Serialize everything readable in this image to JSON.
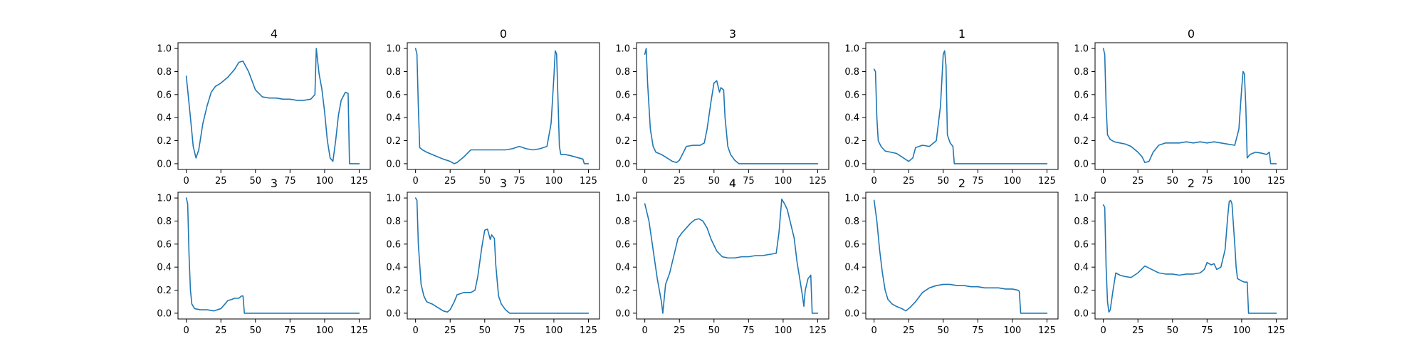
{
  "colors": {
    "series": "#1f77b4",
    "axes": "#000000",
    "background": "#ffffff"
  },
  "chart_data": [
    {
      "type": "line",
      "title": "4",
      "xlim": [
        -6,
        133
      ],
      "ylim": [
        -0.05,
        1.05
      ],
      "xticks": [
        0,
        25,
        50,
        75,
        100,
        125
      ],
      "yticks": [
        0.0,
        0.2,
        0.4,
        0.6,
        0.8,
        1.0
      ],
      "grid": false,
      "x": [
        0,
        3,
        5,
        7,
        9,
        12,
        15,
        18,
        21,
        25,
        30,
        35,
        38,
        41,
        45,
        50,
        55,
        60,
        65,
        70,
        75,
        80,
        85,
        90,
        93,
        94,
        96,
        98,
        100,
        102,
        104,
        106,
        108,
        110,
        112,
        115,
        117,
        118,
        120,
        125
      ],
      "values": [
        0.76,
        0.4,
        0.15,
        0.05,
        0.12,
        0.35,
        0.5,
        0.62,
        0.67,
        0.7,
        0.75,
        0.82,
        0.88,
        0.89,
        0.8,
        0.64,
        0.58,
        0.57,
        0.57,
        0.56,
        0.56,
        0.55,
        0.55,
        0.56,
        0.6,
        1.0,
        0.78,
        0.65,
        0.45,
        0.2,
        0.05,
        0.02,
        0.2,
        0.42,
        0.55,
        0.62,
        0.61,
        0.0,
        0.0,
        0.0
      ]
    },
    {
      "type": "line",
      "title": "0",
      "xlim": [
        -6,
        133
      ],
      "ylim": [
        -0.05,
        1.05
      ],
      "xticks": [
        0,
        25,
        50,
        75,
        100,
        125
      ],
      "yticks": [
        0.0,
        0.2,
        0.4,
        0.6,
        0.8,
        1.0
      ],
      "grid": false,
      "x": [
        0,
        1,
        2,
        3,
        5,
        8,
        12,
        16,
        20,
        25,
        28,
        30,
        35,
        40,
        45,
        50,
        55,
        60,
        65,
        70,
        75,
        80,
        85,
        90,
        95,
        98,
        100,
        101,
        102,
        103,
        104,
        105,
        108,
        112,
        118,
        121,
        122,
        125
      ],
      "values": [
        1.0,
        0.95,
        0.5,
        0.14,
        0.12,
        0.1,
        0.08,
        0.06,
        0.04,
        0.02,
        0.0,
        0.01,
        0.06,
        0.12,
        0.12,
        0.12,
        0.12,
        0.12,
        0.12,
        0.13,
        0.15,
        0.13,
        0.12,
        0.13,
        0.15,
        0.35,
        0.75,
        0.98,
        0.95,
        0.55,
        0.15,
        0.08,
        0.08,
        0.07,
        0.05,
        0.04,
        0.0,
        0.0
      ]
    },
    {
      "type": "line",
      "title": "3",
      "xlim": [
        -6,
        133
      ],
      "ylim": [
        -0.05,
        1.05
      ],
      "xticks": [
        0,
        25,
        50,
        75,
        100,
        125
      ],
      "yticks": [
        0.0,
        0.2,
        0.4,
        0.6,
        0.8,
        1.0
      ],
      "grid": false,
      "x": [
        0,
        1,
        2,
        4,
        6,
        8,
        12,
        16,
        20,
        23,
        25,
        28,
        30,
        35,
        40,
        43,
        45,
        48,
        50,
        52,
        54,
        55,
        57,
        58,
        60,
        62,
        65,
        68,
        70,
        75,
        80,
        90,
        100,
        110,
        120,
        125
      ],
      "values": [
        0.95,
        1.0,
        0.7,
        0.3,
        0.15,
        0.1,
        0.08,
        0.05,
        0.02,
        0.01,
        0.03,
        0.1,
        0.15,
        0.16,
        0.16,
        0.18,
        0.3,
        0.55,
        0.7,
        0.72,
        0.62,
        0.66,
        0.64,
        0.4,
        0.15,
        0.08,
        0.03,
        0.0,
        0.0,
        0.0,
        0.0,
        0.0,
        0.0,
        0.0,
        0.0,
        0.0
      ]
    },
    {
      "type": "line",
      "title": "1",
      "xlim": [
        -6,
        133
      ],
      "ylim": [
        -0.05,
        1.05
      ],
      "xticks": [
        0,
        25,
        50,
        75,
        100,
        125
      ],
      "yticks": [
        0.0,
        0.2,
        0.4,
        0.6,
        0.8,
        1.0
      ],
      "grid": false,
      "x": [
        0,
        1,
        2,
        3,
        5,
        8,
        12,
        16,
        20,
        25,
        28,
        30,
        35,
        40,
        45,
        48,
        50,
        51,
        52,
        53,
        55,
        57,
        58,
        60,
        65,
        70,
        80,
        90,
        100,
        110,
        120,
        125
      ],
      "values": [
        0.82,
        0.8,
        0.4,
        0.2,
        0.15,
        0.11,
        0.1,
        0.09,
        0.06,
        0.02,
        0.05,
        0.14,
        0.16,
        0.15,
        0.2,
        0.5,
        0.95,
        0.98,
        0.85,
        0.25,
        0.18,
        0.15,
        0.0,
        0.0,
        0.0,
        0.0,
        0.0,
        0.0,
        0.0,
        0.0,
        0.0,
        0.0
      ]
    },
    {
      "type": "line",
      "title": "0",
      "xlim": [
        -6,
        133
      ],
      "ylim": [
        -0.05,
        1.05
      ],
      "xticks": [
        0,
        25,
        50,
        75,
        100,
        125
      ],
      "yticks": [
        0.0,
        0.2,
        0.4,
        0.6,
        0.8,
        1.0
      ],
      "grid": false,
      "x": [
        0,
        1,
        2,
        3,
        5,
        8,
        12,
        16,
        20,
        25,
        28,
        30,
        33,
        36,
        40,
        45,
        50,
        55,
        60,
        65,
        70,
        75,
        80,
        85,
        90,
        95,
        98,
        100,
        101,
        102,
        103,
        104,
        106,
        110,
        115,
        118,
        120,
        121,
        122,
        125
      ],
      "values": [
        1.0,
        0.95,
        0.5,
        0.25,
        0.21,
        0.19,
        0.18,
        0.17,
        0.15,
        0.1,
        0.06,
        0.01,
        0.02,
        0.1,
        0.16,
        0.18,
        0.18,
        0.18,
        0.19,
        0.18,
        0.19,
        0.18,
        0.19,
        0.18,
        0.17,
        0.16,
        0.3,
        0.65,
        0.8,
        0.78,
        0.5,
        0.05,
        0.08,
        0.1,
        0.09,
        0.08,
        0.1,
        0.0,
        0.0,
        0.0
      ]
    },
    {
      "type": "line",
      "title": "3",
      "xlim": [
        -6,
        133
      ],
      "ylim": [
        -0.05,
        1.05
      ],
      "xticks": [
        0,
        25,
        50,
        75,
        100,
        125
      ],
      "yticks": [
        0.0,
        0.2,
        0.4,
        0.6,
        0.8,
        1.0
      ],
      "grid": false,
      "x": [
        0,
        1,
        2,
        3,
        4,
        6,
        10,
        15,
        20,
        25,
        28,
        30,
        33,
        35,
        38,
        40,
        41,
        42,
        45,
        50,
        60,
        70,
        80,
        90,
        100,
        110,
        120,
        125
      ],
      "values": [
        1.0,
        0.95,
        0.5,
        0.2,
        0.08,
        0.04,
        0.03,
        0.03,
        0.02,
        0.04,
        0.08,
        0.11,
        0.12,
        0.13,
        0.13,
        0.15,
        0.15,
        0.0,
        0.0,
        0.0,
        0.0,
        0.0,
        0.0,
        0.0,
        0.0,
        0.0,
        0.0,
        0.0
      ]
    },
    {
      "type": "line",
      "title": "3",
      "xlim": [
        -6,
        133
      ],
      "ylim": [
        -0.05,
        1.05
      ],
      "xticks": [
        0,
        25,
        50,
        75,
        100,
        125
      ],
      "yticks": [
        0.0,
        0.2,
        0.4,
        0.6,
        0.8,
        1.0
      ],
      "grid": false,
      "x": [
        0,
        1,
        2,
        4,
        6,
        8,
        12,
        16,
        20,
        23,
        25,
        28,
        30,
        35,
        40,
        43,
        45,
        48,
        50,
        52,
        54,
        55,
        57,
        58,
        60,
        62,
        65,
        68,
        70,
        75,
        80,
        90,
        100,
        110,
        120,
        125
      ],
      "values": [
        1.0,
        0.98,
        0.6,
        0.25,
        0.15,
        0.1,
        0.08,
        0.05,
        0.02,
        0.01,
        0.03,
        0.1,
        0.16,
        0.18,
        0.18,
        0.2,
        0.32,
        0.58,
        0.72,
        0.73,
        0.64,
        0.68,
        0.65,
        0.42,
        0.15,
        0.08,
        0.03,
        0.0,
        0.0,
        0.0,
        0.0,
        0.0,
        0.0,
        0.0,
        0.0,
        0.0
      ]
    },
    {
      "type": "line",
      "title": "4",
      "xlim": [
        -6,
        133
      ],
      "ylim": [
        -0.05,
        1.05
      ],
      "xticks": [
        0,
        25,
        50,
        75,
        100,
        125
      ],
      "yticks": [
        0.0,
        0.2,
        0.4,
        0.6,
        0.8,
        1.0
      ],
      "grid": false,
      "x": [
        0,
        3,
        6,
        9,
        12,
        13,
        15,
        18,
        21,
        24,
        27,
        30,
        33,
        36,
        39,
        42,
        45,
        48,
        52,
        56,
        60,
        65,
        70,
        75,
        80,
        85,
        90,
        95,
        97,
        99,
        101,
        103,
        105,
        108,
        110,
        112,
        114,
        115,
        116,
        118,
        120,
        121,
        122,
        125
      ],
      "values": [
        0.95,
        0.8,
        0.55,
        0.3,
        0.1,
        0.0,
        0.25,
        0.35,
        0.5,
        0.65,
        0.7,
        0.74,
        0.78,
        0.81,
        0.82,
        0.8,
        0.74,
        0.64,
        0.54,
        0.49,
        0.48,
        0.48,
        0.49,
        0.49,
        0.5,
        0.5,
        0.51,
        0.52,
        0.7,
        0.99,
        0.95,
        0.9,
        0.8,
        0.65,
        0.45,
        0.3,
        0.15,
        0.06,
        0.2,
        0.3,
        0.33,
        0.0,
        0.0,
        0.0
      ]
    },
    {
      "type": "line",
      "title": "2",
      "xlim": [
        -6,
        133
      ],
      "ylim": [
        -0.05,
        1.05
      ],
      "xticks": [
        0,
        25,
        50,
        75,
        100,
        125
      ],
      "yticks": [
        0.0,
        0.2,
        0.4,
        0.6,
        0.8,
        1.0
      ],
      "grid": false,
      "x": [
        0,
        2,
        4,
        6,
        8,
        10,
        13,
        16,
        20,
        23,
        26,
        30,
        35,
        40,
        45,
        50,
        55,
        60,
        65,
        70,
        75,
        80,
        85,
        90,
        95,
        100,
        104,
        105,
        106,
        110,
        120,
        125
      ],
      "values": [
        0.98,
        0.8,
        0.55,
        0.35,
        0.2,
        0.12,
        0.08,
        0.06,
        0.04,
        0.02,
        0.05,
        0.1,
        0.18,
        0.22,
        0.24,
        0.25,
        0.25,
        0.24,
        0.24,
        0.23,
        0.23,
        0.22,
        0.22,
        0.22,
        0.21,
        0.21,
        0.2,
        0.19,
        0.0,
        0.0,
        0.0,
        0.0
      ]
    },
    {
      "type": "line",
      "title": "2",
      "xlim": [
        -6,
        133
      ],
      "ylim": [
        -0.05,
        1.05
      ],
      "xticks": [
        0,
        25,
        50,
        75,
        100,
        125
      ],
      "yticks": [
        0.0,
        0.2,
        0.4,
        0.6,
        0.8,
        1.0
      ],
      "grid": false,
      "x": [
        0,
        1,
        2,
        3,
        4,
        5,
        7,
        9,
        12,
        15,
        20,
        25,
        30,
        35,
        40,
        45,
        50,
        55,
        60,
        65,
        70,
        73,
        75,
        78,
        80,
        82,
        85,
        88,
        90,
        91,
        92,
        93,
        95,
        96,
        97,
        100,
        102,
        104,
        105,
        110,
        120,
        125
      ],
      "values": [
        0.94,
        0.92,
        0.4,
        0.1,
        0.01,
        0.03,
        0.2,
        0.35,
        0.33,
        0.32,
        0.31,
        0.35,
        0.41,
        0.38,
        0.35,
        0.34,
        0.34,
        0.33,
        0.34,
        0.34,
        0.35,
        0.38,
        0.44,
        0.42,
        0.43,
        0.38,
        0.4,
        0.55,
        0.85,
        0.97,
        0.98,
        0.95,
        0.6,
        0.4,
        0.3,
        0.28,
        0.27,
        0.27,
        0.0,
        0.0,
        0.0,
        0.0
      ]
    }
  ]
}
